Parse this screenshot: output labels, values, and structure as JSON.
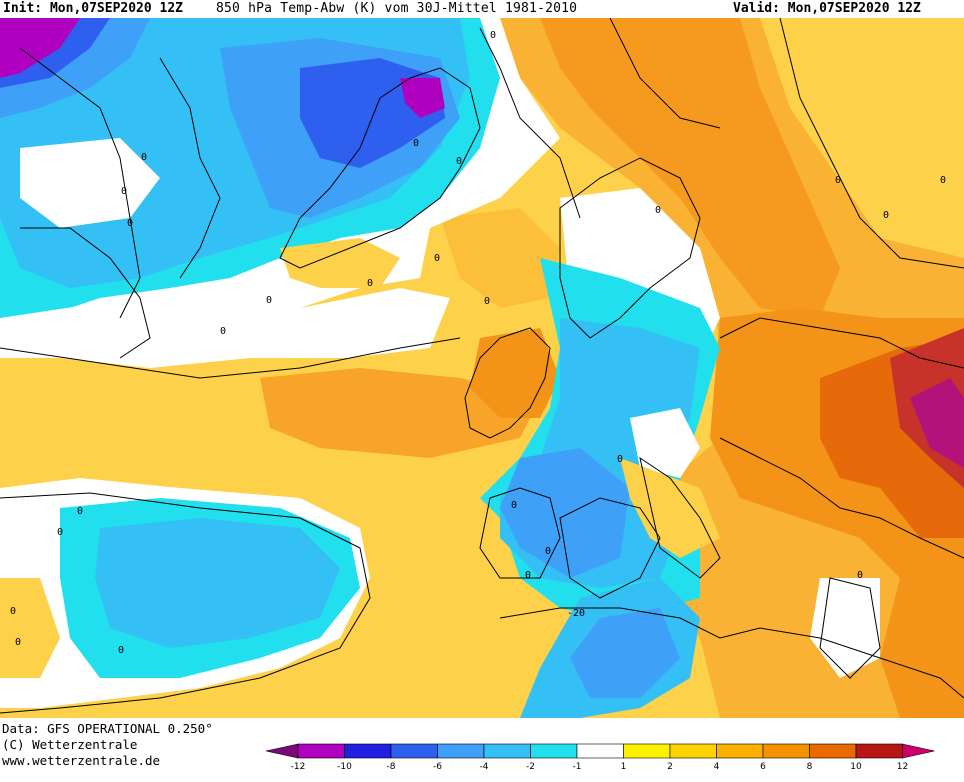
{
  "header": {
    "init": "Init: Mon,07SEP2020 12Z",
    "title": "850 hPa Temp-Abw (K) vom 30J-Mittel 1981-2010",
    "valid": "Valid: Mon,07SEP2020 12Z"
  },
  "footer": {
    "data_source": "Data: GFS OPERATIONAL 0.250°",
    "copyright": "(C) Wetterzentrale",
    "url": "www.wetterzentrale.de"
  },
  "colorbar": {
    "ticks": [
      "-12",
      "-10",
      "-8",
      "-6",
      "-4",
      "-2",
      "-1",
      "1",
      "2",
      "4",
      "6",
      "8",
      "10",
      "12"
    ],
    "colors": [
      "#b000c0",
      "#2020e0",
      "#2f5fee",
      "#3fa0f8",
      "#34c0f4",
      "#22dfee",
      "#ffffff",
      "#fff200",
      "#fed300",
      "#fcb100",
      "#f59200",
      "#e86a00",
      "#b81515"
    ],
    "low_end_color": "#7a0a7a",
    "high_end_color": "#d0006a"
  },
  "map": {
    "contour_labels": [
      "0",
      "0",
      "0",
      "0",
      "0",
      "0",
      "0",
      "0",
      "0",
      "0",
      "0",
      "0",
      "0",
      "0",
      "0",
      "0",
      "0",
      "0",
      "0",
      "0",
      "0",
      "0",
      "0",
      "0",
      "0",
      "-20"
    ]
  }
}
